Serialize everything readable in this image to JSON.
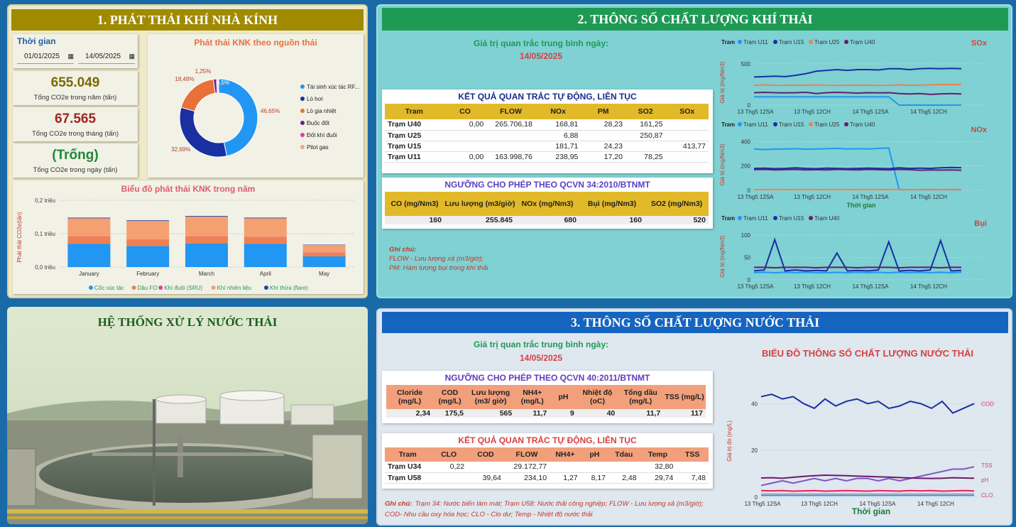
{
  "ghg": {
    "title": "1. PHÁT THẢI KHÍ NHÀ KÍNH",
    "time_label": "Thời gian",
    "date_from": "01/01/2025",
    "date_to": "14/05/2025",
    "kpi_year": {
      "value": "655.049",
      "label": "Tổng CO2e trong năm (tấn)"
    },
    "kpi_month": {
      "value": "67.565",
      "label": "Tổng CO2e trong tháng (tấn)"
    },
    "kpi_day": {
      "value": "(Trống)",
      "label": "Tổng CO2e trong ngày (tấn)"
    },
    "donut_title": "Phát thải KNK theo nguồn thải",
    "bar_title": "Biểu đồ phát thải KNK trong năm"
  },
  "emission": {
    "title": "2. THÔNG SỐ CHẤT LƯỢNG KHÍ THẢI",
    "avg_label": "Giá trị quan trắc trung bình ngày:",
    "avg_date": "14/05/2025",
    "auto_title": "KẾT QUẢ QUAN TRẮC TỰ ĐỘNG, LIÊN TỤC",
    "auto_headers": [
      "Tram",
      "CO",
      "FLOW",
      "NOx",
      "PM",
      "SO2",
      "SOx"
    ],
    "auto_rows": [
      [
        "Trạm U40",
        "0,00",
        "265.706,18",
        "168,81",
        "28,23",
        "161,25",
        ""
      ],
      [
        "Trạm U25",
        "",
        "",
        "6,88",
        "",
        "250,87",
        ""
      ],
      [
        "Trạm U15",
        "",
        "",
        "181,71",
        "24,23",
        "",
        "413,77"
      ],
      [
        "Trạm U11",
        "0,00",
        "163.998,76",
        "238,95",
        "17,20",
        "78,25",
        ""
      ]
    ],
    "limit_title": "NGƯỠNG CHO PHÉP THEO QCVN 34:2010/BTNMT",
    "limit_headers": [
      "CO (mg/Nm3)",
      "Lưu lượng (m3/giờ)",
      "NOx (mg/Nm3)",
      "Bụi (mg/Nm3)",
      "SO2 (mg/Nm3)"
    ],
    "limit_values": [
      "160",
      "255.845",
      "680",
      "160",
      "520"
    ],
    "note_title": "Ghi chú:",
    "note_lines": [
      "FLOW - Lưu lượng xả (m3/giờ);",
      "PM: Hàm lượng bụi trong khí thải"
    ],
    "legend_label": "Tram"
  },
  "wastewater_system": {
    "title": "HỆ THỐNG XỬ LÝ NƯỚC THẢI"
  },
  "water": {
    "title": "3. THÔNG SỐ CHẤT LƯỢNG NƯỚC THẢI",
    "avg_label": "Giá trị quan trắc trung bình ngày:",
    "avg_date": "14/05/2025",
    "limit_title": "NGƯỠNG CHO PHÉP THEO QCVN 40:2011/BTNMT",
    "limit_headers": [
      "Cloride (mg/L)",
      "COD (mg/L)",
      "Lưu lượng (m3/ giờ)",
      "NH4+ (mg/L)",
      "pH",
      "Nhiệt độ (oC)",
      "Tổng dầu (mg/L)",
      "TSS (mg/L)"
    ],
    "limit_values": [
      "2,34",
      "175,5",
      "565",
      "11,7",
      "9",
      "40",
      "11,7",
      "117"
    ],
    "auto_title": "KẾT QUẢ QUAN TRẮC TỰ ĐỘNG, LIÊN TỤC",
    "auto_headers": [
      "Tram",
      "CLO",
      "COD",
      "FLOW",
      "NH4+",
      "pH",
      "Tdau",
      "Temp",
      "TSS"
    ],
    "auto_rows": [
      [
        "Trạm U34",
        "0,22",
        "",
        "29.172,77",
        "",
        "",
        "",
        "32,80",
        ""
      ],
      [
        "Trạm U58",
        "",
        "39,64",
        "234,10",
        "1,27",
        "8,17",
        "2,48",
        "29,74",
        "7,48"
      ]
    ],
    "note_title": "Ghi chú:",
    "note_text": "Trạm 34: Nước biển làm mát; Trạm U58: Nước thải công nghiệp; FLOW - Lưu lượng xả (m3/giờ); COD- Nhu cầu oxy hóa học; CLO - Clo dư; Temp - Nhiệt độ nước thải",
    "chart_title": "BIỂU ĐỒ THÔNG SỐ CHẤT LƯỢNG NƯỚC THẢI"
  },
  "colors": {
    "olive": "#a08a00",
    "green_bar": "#1e9a55",
    "blue_bar": "#1565c0",
    "teal_bg": "#7fd1d3",
    "gold": "#e2b928",
    "salmon": "#f2a07b"
  },
  "chart_data": [
    {
      "type": "pie",
      "title": "Phát thải KNK theo nguồn thải",
      "labels": [
        "Tái sinh xúc tác RF...",
        "Lò hơi",
        "Lò gia nhiệt",
        "Đuốc đốt",
        "Đốt khí đuôi",
        "Pilot gas"
      ],
      "values": [
        46.65,
        32.69,
        18.48,
        1.25,
        0.5,
        0.43
      ],
      "value_labels": [
        "46,65%",
        "32,69%",
        "18,48%",
        "1,25%",
        "0,5%",
        ""
      ],
      "colors": [
        "#2196f3",
        "#1a2fa0",
        "#e8703a",
        "#6a1b9a",
        "#e040a0",
        "#f4a582"
      ]
    },
    {
      "type": "bar",
      "title": "Biểu đồ phát thải KNK trong năm",
      "ylabel": "Phát thải CO2e(tấn)",
      "categories": [
        "January",
        "February",
        "March",
        "April",
        "May"
      ],
      "yticks": [
        "0,0 triệu",
        "0,1 triệu",
        "0,2 triệu"
      ],
      "ylim": [
        0,
        0.2
      ],
      "series": [
        {
          "name": "Cốc xúc tác",
          "color": "#2196f3",
          "values": [
            0.07,
            0.063,
            0.071,
            0.07,
            0.032
          ]
        },
        {
          "name": "Dầu FO",
          "color": "#f08050",
          "values": [
            0.022,
            0.018,
            0.021,
            0.02,
            0.011
          ]
        },
        {
          "name": "Khí đuôi (SRU)",
          "color": "#e040a0",
          "values": [
            0.001,
            0.001,
            0.001,
            0.001,
            0.001
          ]
        },
        {
          "name": "Khí nhiên liệu",
          "color": "#f4a070",
          "values": [
            0.053,
            0.056,
            0.058,
            0.055,
            0.022
          ]
        },
        {
          "name": "Khí thừa (flare)",
          "color": "#303f9f",
          "values": [
            0.002,
            0.002,
            0.002,
            0.002,
            0.001
          ]
        }
      ]
    },
    {
      "type": "line",
      "title": "SOx",
      "ylabel": "Giá trị (mg/Nm3)",
      "x_ticks": [
        "13 Thg5 12SA",
        "13 Thg5 12CH",
        "14 Thg5 12SA",
        "14 Thg5 12CH"
      ],
      "yticks": [
        0,
        500
      ],
      "ylim": [
        0,
        550
      ],
      "series": [
        {
          "name": "Trạm U11",
          "color": "#2196f3",
          "values": [
            100,
            100,
            100,
            100,
            100,
            100,
            100,
            100,
            100,
            100,
            100,
            100,
            100,
            100,
            0,
            0,
            0,
            0,
            0,
            0,
            0
          ]
        },
        {
          "name": "Trạm U15",
          "color": "#1a2fa0",
          "values": [
            340,
            345,
            350,
            345,
            360,
            380,
            410,
            420,
            430,
            420,
            430,
            430,
            425,
            440,
            440,
            430,
            440,
            445,
            440,
            445,
            440
          ]
        },
        {
          "name": "Trạm U25",
          "color": "#f08050",
          "values": [
            240,
            245,
            240,
            238,
            242,
            240,
            245,
            240,
            238,
            240,
            242,
            240,
            238,
            240,
            245,
            240,
            242,
            245,
            250,
            248,
            250
          ]
        },
        {
          "name": "Trạm U40",
          "color": "#6a1b6a",
          "values": [
            150,
            155,
            150,
            148,
            150,
            155,
            140,
            150,
            155,
            150,
            145,
            150,
            148,
            150,
            140,
            135,
            140,
            130,
            135,
            140,
            135
          ]
        }
      ]
    },
    {
      "type": "line",
      "title": "NOx",
      "ylabel": "Giá trị (mg/Nm3)",
      "x_ticks": [
        "13 Thg5 12SA",
        "13 Thg5 12CH",
        "14 Thg5 12SA",
        "14 Thg5 12CH"
      ],
      "xlabel": "Thời gian",
      "yticks": [
        0,
        200,
        400
      ],
      "ylim": [
        0,
        420
      ],
      "series": [
        {
          "name": "Trạm U11",
          "color": "#2196f3",
          "values": [
            340,
            335,
            338,
            340,
            342,
            338,
            340,
            342,
            345,
            340,
            342,
            340,
            345,
            348,
            5,
            5,
            5,
            5,
            5,
            5,
            5
          ]
        },
        {
          "name": "Trạm U15",
          "color": "#1a2fa0",
          "values": [
            180,
            182,
            178,
            180,
            185,
            180,
            178,
            182,
            180,
            178,
            180,
            182,
            180,
            178,
            185,
            180,
            182,
            180,
            185,
            188,
            186
          ]
        },
        {
          "name": "Trạm U25",
          "color": "#f08050",
          "values": [
            6,
            6,
            7,
            6,
            6,
            7,
            6,
            6,
            7,
            6,
            6,
            7,
            6,
            6,
            7,
            6,
            6,
            7,
            6,
            7,
            7
          ]
        },
        {
          "name": "Trạm U40",
          "color": "#6a1b6a",
          "values": [
            170,
            172,
            168,
            170,
            172,
            168,
            170,
            168,
            172,
            170,
            168,
            172,
            170,
            168,
            172,
            170,
            165,
            168,
            166,
            168,
            165
          ]
        }
      ]
    },
    {
      "type": "line",
      "title": "Bụi",
      "ylabel": "Giá trị (mg/Nm3)",
      "x_ticks": [
        "13 Thg5 12SA",
        "13 Thg5 12CH",
        "14 Thg5 12SA",
        "14 Thg5 12CH"
      ],
      "yticks": [
        0,
        50,
        100
      ],
      "ylim": [
        0,
        105
      ],
      "series": [
        {
          "name": "Trạm U11",
          "color": "#2196f3",
          "values": [
            16,
            17,
            16,
            17,
            16,
            17,
            16,
            16,
            17,
            16,
            17,
            16,
            17,
            16,
            17,
            16,
            17,
            16,
            17,
            16,
            17
          ]
        },
        {
          "name": "Trạm U15",
          "color": "#1a2fa0",
          "values": [
            20,
            22,
            90,
            20,
            22,
            20,
            21,
            20,
            60,
            20,
            21,
            20,
            22,
            85,
            20,
            21,
            20,
            22,
            88,
            20,
            21
          ]
        },
        {
          "name": "Trạm U40",
          "color": "#6a1b6a",
          "values": [
            28,
            28,
            27,
            28,
            28,
            28,
            27,
            28,
            28,
            28,
            27,
            28,
            28,
            28,
            27,
            28,
            28,
            28,
            27,
            28,
            28
          ]
        }
      ]
    },
    {
      "type": "line",
      "title": "BIỂU ĐỒ THÔNG SỐ CHẤT LƯỢNG NƯỚC THẢI",
      "ylabel": "Giá trị đo (mg/L)",
      "xlabel": "Thời gian",
      "x_ticks": [
        "13 Thg5 12SA",
        "13 Thg5 12CH",
        "14 Thg5 12SA",
        "14 Thg5 12CH"
      ],
      "yticks": [
        0,
        20,
        40
      ],
      "ylim": [
        0,
        48
      ],
      "series": [
        {
          "name": "COD",
          "color": "#1a2fa0",
          "values": [
            43,
            44,
            42,
            43,
            40,
            38,
            42,
            39,
            41,
            42,
            40,
            41,
            38,
            39,
            41,
            40,
            38,
            41,
            36,
            38,
            40
          ]
        },
        {
          "name": "TSS",
          "color": "#7e57c2",
          "values": [
            5,
            6,
            7,
            6,
            7,
            8,
            7,
            8,
            7,
            8,
            8,
            7,
            8,
            7,
            8,
            9,
            10,
            11,
            12,
            12,
            13
          ]
        },
        {
          "name": "pH",
          "color": "#6a1b6a",
          "values": [
            8.2,
            8.3,
            8.1,
            8.5,
            8.9,
            9.2,
            9.4,
            9.3,
            9.2,
            9.0,
            8.9,
            8.7,
            8.6,
            8.4,
            8.2,
            8.1,
            8.0,
            8.1,
            8.3,
            8.2,
            8.1
          ]
        },
        {
          "name": "CLO",
          "color": "#e91e63",
          "values": [
            2.8,
            2.7,
            2.8,
            2.6,
            2.7,
            2.8,
            2.6,
            2.7,
            2.8,
            2.7,
            2.6,
            2.8,
            2.7,
            2.6,
            2.8,
            2.7,
            2.8,
            2.6,
            2.7,
            2.8,
            2.7
          ]
        },
        {
          "name": "",
          "color": "#f4a582",
          "values": [
            1.5,
            1.5,
            1.5,
            1.5,
            1.5,
            1.5,
            1.5,
            1.5,
            1.5,
            1.5,
            1.5,
            1.5,
            1.5,
            1.5,
            1.5,
            1.5,
            1.5,
            1.5,
            1.5,
            1.5,
            1.5
          ]
        },
        {
          "name": "",
          "color": "#2196f3",
          "values": [
            0.8,
            0.8,
            0.8,
            0.8,
            0.8,
            0.8,
            0.8,
            0.8,
            0.8,
            0.8,
            0.8,
            0.8,
            0.8,
            0.8,
            0.8,
            0.8,
            0.8,
            0.8,
            0.8,
            0.8,
            0.8
          ]
        }
      ]
    }
  ]
}
